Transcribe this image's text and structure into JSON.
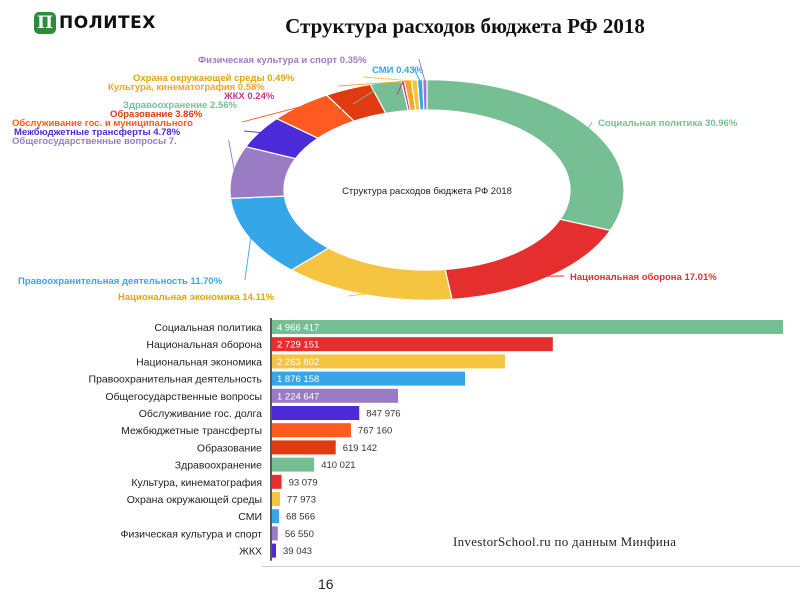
{
  "header": {
    "logo_mark": "П",
    "logo_text": "ПОЛИТЕХ",
    "title": "Структура расходов бюджета РФ 2018"
  },
  "source_note": "InvestorSchool.ru по данным Минфина",
  "page_number": "16",
  "chart_data": [
    {
      "type": "pie",
      "center_label": "Структура расходов бюджета РФ 2018",
      "slices": [
        {
          "label": "Социальная политика 30.96%",
          "value": 30.96,
          "color": "#76bf95"
        },
        {
          "label": "Национальная оборона 17.01%",
          "value": 17.01,
          "color": "#e52e2e"
        },
        {
          "label": "Национальная экономика 14.11%",
          "value": 14.11,
          "color": "#f5c542"
        },
        {
          "label": "Правоохранительная деятельность 11.70%",
          "value": 11.7,
          "color": "#35a7e8"
        },
        {
          "label": "Общегосударственные вопросы 7.",
          "value": 7.63,
          "color": "#9a7cc4"
        },
        {
          "label": "Межбюджетные трансферты 4.78%",
          "value": 4.78,
          "color": "#4b2ad8"
        },
        {
          "label": "Обслуживание гос. и муниципального",
          "value": 5.29,
          "color": "#ff5a1f"
        },
        {
          "label": "Образование 3.86%",
          "value": 3.86,
          "color": "#e03a10"
        },
        {
          "label": "Здравоохранение 2.56%",
          "value": 2.56,
          "color": "#76bf95"
        },
        {
          "label": "ЖКХ 0.24%",
          "value": 0.24,
          "color": "#c03a8a"
        },
        {
          "label": "Культура, кинематография 0.58%",
          "value": 0.58,
          "color": "#f5a623"
        },
        {
          "label": "Охрана окружающей среды 0.49%",
          "value": 0.49,
          "color": "#f5c542"
        },
        {
          "label": "СМИ 0.43%",
          "value": 0.43,
          "color": "#35a7e8"
        },
        {
          "label": "Физическая культура и спорт 0.35%",
          "value": 0.35,
          "color": "#9a7cc4"
        }
      ]
    },
    {
      "type": "bar",
      "orientation": "horizontal",
      "xlim": [
        0,
        4966417
      ],
      "categories": [
        "Социальная политика",
        "Национальная оборона",
        "Национальная экономика",
        "Правоохранительная деятельность",
        "Общегосударственные вопросы",
        "Обслуживание гос. долга",
        "Межбюджетные трансферты",
        "Образование",
        "Здравоохранение",
        "Культура, кинематография",
        "Охрана окружающей среды",
        "СМИ",
        "Физическая культура и спорт",
        "ЖКХ"
      ],
      "values": [
        4966417,
        2729151,
        2263802,
        1876158,
        1224647,
        847976,
        767160,
        619142,
        410021,
        93079,
        77973,
        68566,
        56550,
        39043
      ],
      "value_labels": [
        "4 966 417",
        "2 729 151",
        "2 263 802",
        "1 876 158",
        "1 224 647",
        "847 976",
        "767 160",
        "619 142",
        "410 021",
        "93 079",
        "77 973",
        "68 566",
        "56 550",
        "39 043"
      ],
      "colors": [
        "#76bf95",
        "#e52e2e",
        "#f5c542",
        "#35a7e8",
        "#9a7cc4",
        "#4b2ad8",
        "#ff5a1f",
        "#e03a10",
        "#76bf95",
        "#e52e2e",
        "#f5c542",
        "#35a7e8",
        "#9a7cc4",
        "#4b2ad8"
      ]
    }
  ]
}
